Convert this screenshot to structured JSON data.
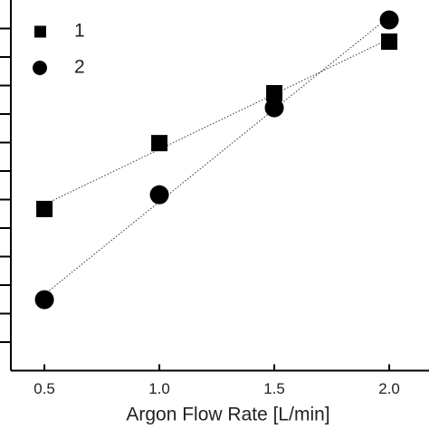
{
  "chart_data": {
    "type": "scatter",
    "x_label": "Argon Flow Rate [L/min]",
    "xlim": [
      0.354,
      2.173
    ],
    "xticks": [
      {
        "value": 0.5,
        "label": "0.5"
      },
      {
        "value": 1,
        "label": "1.0"
      },
      {
        "value": 1.5,
        "label": "1.5"
      },
      {
        "value": 2,
        "label": "2.0"
      }
    ],
    "ylim": [
      0,
      13
    ],
    "yticks": [
      1,
      2,
      3,
      4,
      5,
      6,
      7,
      8,
      9,
      10,
      11,
      12
    ],
    "trend_lines": true,
    "legend": "top-left",
    "series": [
      {
        "name": "1",
        "marker": "square",
        "color": "#000000",
        "x": [
          0.5,
          1,
          1.5,
          2
        ],
        "values": [
          5.67,
          7.98,
          9.73,
          11.54
        ]
      },
      {
        "name": "2",
        "marker": "circle",
        "color": "#000000",
        "x": [
          0.5,
          1,
          1.5,
          2
        ],
        "values": [
          2.49,
          6.17,
          9.22,
          12.3
        ]
      }
    ]
  }
}
